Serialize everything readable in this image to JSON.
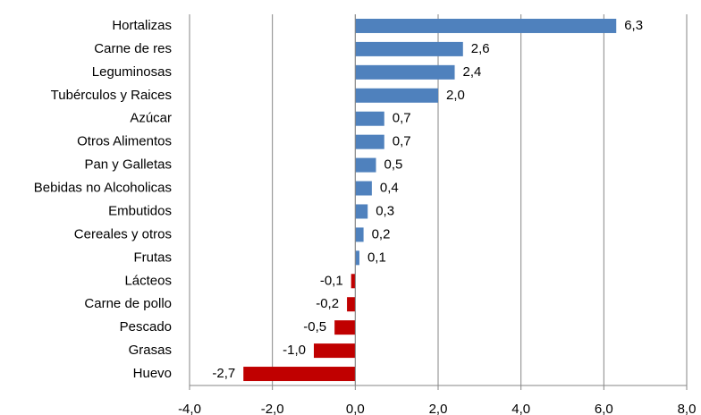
{
  "chart_data": {
    "type": "bar",
    "orientation": "horizontal",
    "categories": [
      "Hortalizas",
      "Carne de res",
      "Leguminosas",
      "Tubérculos y Raices",
      "Azúcar",
      "Otros Alimentos",
      "Pan y Galletas",
      "Bebidas no Alcoholicas",
      "Embutidos",
      "Cereales y otros",
      "Frutas",
      "Lácteos",
      "Carne de pollo",
      "Pescado",
      "Grasas",
      "Huevo"
    ],
    "values": [
      6.3,
      2.6,
      2.4,
      2.0,
      0.7,
      0.7,
      0.5,
      0.4,
      0.3,
      0.2,
      0.1,
      -0.1,
      -0.2,
      -0.5,
      -1.0,
      -2.7
    ],
    "value_labels": [
      "6,3",
      "2,6",
      "2,4",
      "2,0",
      "0,7",
      "0,7",
      "0,5",
      "0,4",
      "0,3",
      "0,2",
      "0,1",
      "-0,1",
      "-0,2",
      "-0,5",
      "-1,0",
      "-2,7"
    ],
    "positive_color": "#4f81bd",
    "negative_color": "#c00000",
    "xlim": [
      -4,
      8
    ],
    "xticks": [
      {
        "value": -4,
        "label": "-4,0"
      },
      {
        "value": -2,
        "label": "-2,0"
      },
      {
        "value": 0,
        "label": "0,0"
      },
      {
        "value": 2,
        "label": "2,0"
      },
      {
        "value": 4,
        "label": "4,0"
      },
      {
        "value": 6,
        "label": "6,0"
      },
      {
        "value": 8,
        "label": "8,0"
      }
    ],
    "grid": true
  }
}
